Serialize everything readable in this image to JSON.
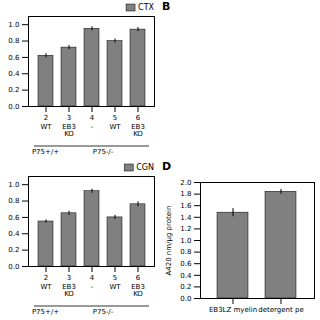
{
  "chart_data": [
    {
      "type": "bar",
      "categories": [
        "2",
        "3",
        "4",
        "5",
        "6"
      ],
      "group_labels": [
        "WT",
        "EB3\nKO",
        "-",
        "WT",
        "EB3\nKO"
      ],
      "series": [
        {
          "name": "CTX",
          "color": "#808080",
          "values": [
            0.62,
            0.72,
            0.95,
            0.8,
            0.94
          ],
          "errors": [
            0.025,
            0.025,
            0.025,
            0.025,
            0.025
          ]
        }
      ],
      "ylim": [
        0,
        1.1
      ],
      "yticks": [
        {
          "value": 0,
          "label": "0.0"
        },
        0.2,
        0.4,
        0.6,
        0.8,
        {
          "value": 1,
          "label": "1.0"
        }
      ],
      "legend": "upper right",
      "annotations": [
        {
          "text": "P75+/+",
          "categories": [
            "2"
          ]
        },
        {
          "text": "P75-/-",
          "categories": [
            "3",
            "4",
            "5",
            "6"
          ]
        }
      ]
    },
    {
      "type": "blank",
      "title": "B"
    },
    {
      "type": "bar",
      "categories": [
        "2",
        "3",
        "4",
        "5",
        "6"
      ],
      "group_labels": [
        "WT",
        "EB3\nKO",
        "-",
        "WT",
        "EB3\nKO"
      ],
      "series": [
        {
          "name": "CGN",
          "color": "#808080",
          "values": [
            0.55,
            0.65,
            0.92,
            0.6,
            0.76
          ],
          "errors": [
            0.02,
            0.025,
            0.025,
            0.025,
            0.03
          ]
        }
      ],
      "ylim": [
        0,
        1.1
      ],
      "yticks": [
        {
          "value": 0,
          "label": "0.0"
        },
        0.2,
        0.4,
        0.6,
        0.8,
        {
          "value": 1,
          "label": "1.0"
        }
      ],
      "legend": "upper right",
      "annotations": [
        {
          "text": "P75+/+",
          "categories": [
            "2"
          ]
        },
        {
          "text": "P75-/-",
          "categories": [
            "3",
            "4",
            "5",
            "6"
          ]
        }
      ]
    },
    {
      "type": "bar",
      "title": "D",
      "categories": [
        "EB3LZ myelin",
        "detergent pe"
      ],
      "values": [
        1.48,
        1.84
      ],
      "errors": [
        0.07,
        0.04
      ],
      "color": "#808080",
      "ylabel": "A420 nm/µg protein",
      "ylim": [
        0,
        2.0
      ],
      "yticks": [
        {
          "value": 0,
          "label": "0.0"
        },
        0.2,
        0.4,
        0.6,
        0.8,
        {
          "value": 1,
          "label": "1.0"
        },
        1.2,
        1.4,
        1.6,
        1.8,
        {
          "value": 2,
          "label": "2.0"
        }
      ]
    }
  ]
}
